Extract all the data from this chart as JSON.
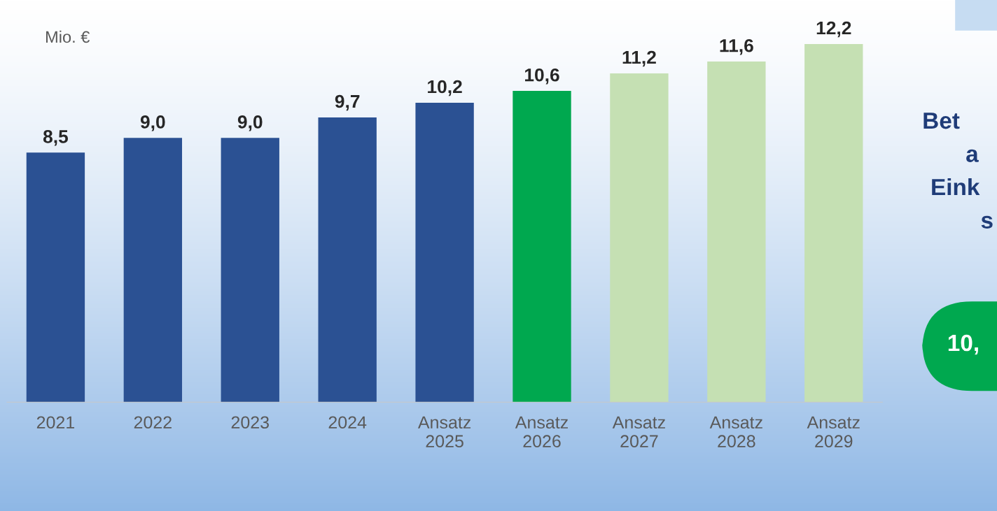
{
  "chart_data": {
    "type": "bar",
    "ylabel": "Mio. €",
    "categories": [
      "2021",
      "2022",
      "2023",
      "2024",
      "Ansatz\n2025",
      "Ansatz\n2026",
      "Ansatz\n2027",
      "Ansatz\n2028",
      "Ansatz\n2029"
    ],
    "values": [
      8.5,
      9.0,
      9.0,
      9.7,
      10.2,
      10.6,
      11.2,
      11.6,
      12.2
    ],
    "colors": [
      "#2b5193",
      "#2b5193",
      "#2b5193",
      "#2b5193",
      "#2b5193",
      "#00a84f",
      "#c5e0b3",
      "#c5e0b3",
      "#c5e0b3"
    ],
    "value_labels": [
      "8,5",
      "9,0",
      "9,0",
      "9,7",
      "10,2",
      "10,6",
      "11,2",
      "11,6",
      "12,2"
    ],
    "annotations": [
      "Bet",
      "a",
      "Eink",
      "s",
      "10,"
    ],
    "grid": false,
    "legend": false
  }
}
